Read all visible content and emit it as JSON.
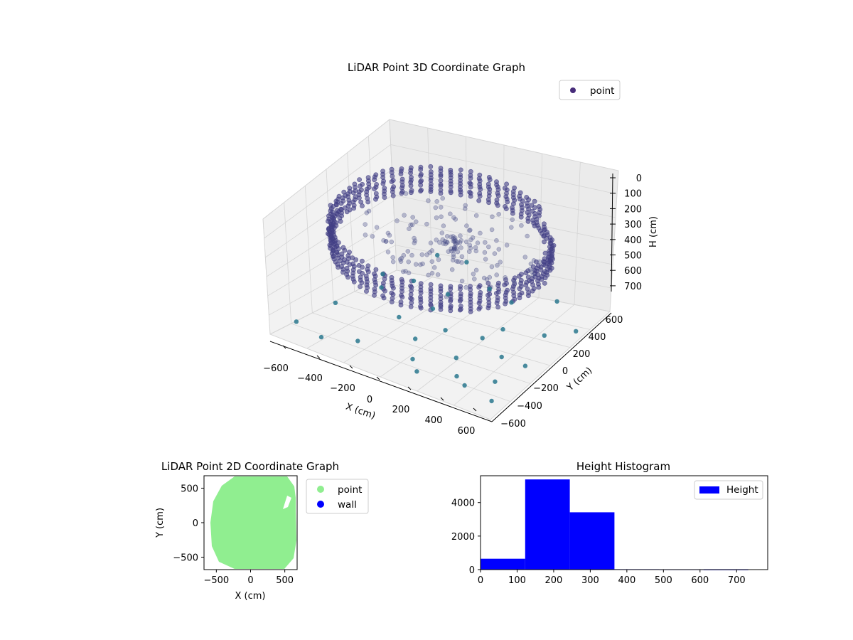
{
  "figure": {
    "panels": [
      "3d",
      "2d",
      "hist"
    ]
  },
  "chart_data": [
    {
      "type": "scatter",
      "projection": "3d",
      "title": "LiDAR Point 3D Coordinate Graph",
      "xlabel": "X (cm)",
      "ylabel": "Y (cm)",
      "zlabel": "H (cm)",
      "xticks": [
        "−600",
        "−400",
        "−200",
        "0",
        "200",
        "400",
        "600"
      ],
      "yticks": [
        "−600",
        "−400",
        "−200",
        "0",
        "200",
        "400",
        "600"
      ],
      "zticks": [
        "0",
        "100",
        "200",
        "300",
        "400",
        "500",
        "600",
        "700"
      ],
      "xlim": [
        -650,
        650
      ],
      "ylim": [
        -650,
        650
      ],
      "zlim": [
        0,
        740
      ],
      "zaxis_inverted": true,
      "legend": {
        "labels": [
          "point"
        ],
        "position": "top-right"
      },
      "colormap": "viridis",
      "grid": true,
      "description_of_distribution": "dense ring of points ~200-360 cm high with sparse ground points",
      "series": [
        {
          "name": "point",
          "color": "#472c7a"
        }
      ]
    },
    {
      "type": "scatter",
      "title": "LiDAR Point 2D Coordinate Graph",
      "xlabel": "X (cm)",
      "ylabel": "Y (cm)",
      "xticks": [
        "−500",
        "0",
        "500"
      ],
      "yticks": [
        "−500",
        "0",
        "500"
      ],
      "xlim": [
        -680,
        680
      ],
      "ylim": [
        -680,
        680
      ],
      "legend": {
        "labels": [
          "point",
          "wall"
        ],
        "position": "outside-right"
      },
      "series": [
        {
          "name": "point",
          "color": "#90ee90"
        },
        {
          "name": "wall",
          "color": "#0000ff"
        }
      ]
    },
    {
      "type": "bar",
      "title": "Height Histogram",
      "xlabel": "",
      "ylabel": "",
      "xticks": [
        "0",
        "100",
        "200",
        "300",
        "400",
        "500",
        "600",
        "700"
      ],
      "yticks": [
        "0",
        "2000",
        "4000"
      ],
      "xlim": [
        0,
        785
      ],
      "ylim": [
        0,
        5600
      ],
      "legend": {
        "labels": [
          "Height"
        ],
        "position": "top-right"
      },
      "color": "#0000ff",
      "bins": [
        {
          "x0": 0,
          "x1": 122,
          "count": 650
        },
        {
          "x0": 122,
          "x1": 244,
          "count": 5380
        },
        {
          "x0": 244,
          "x1": 366,
          "count": 3420
        },
        {
          "x0": 366,
          "x1": 488,
          "count": 25
        },
        {
          "x0": 488,
          "x1": 610,
          "count": 15
        },
        {
          "x0": 610,
          "x1": 732,
          "count": 10
        }
      ]
    }
  ]
}
